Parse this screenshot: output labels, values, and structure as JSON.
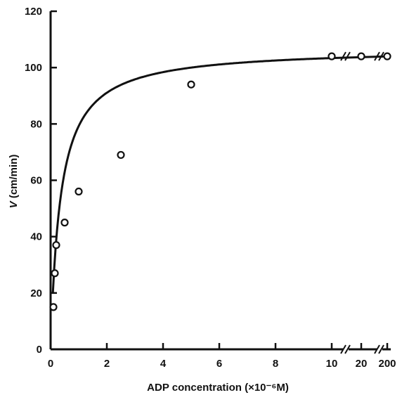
{
  "chart_data": {
    "type": "scatter",
    "xlabel": "ADP concentration (×10⁻⁶M)",
    "ylabel_var": "V",
    "ylabel_unit": " (cm/min)",
    "ylim": [
      0,
      120
    ],
    "y_ticks": [
      0,
      20,
      40,
      60,
      80,
      100,
      120
    ],
    "xlim_linear": [
      0,
      10
    ],
    "x_ticks_linear": [
      0,
      2,
      4,
      6,
      8,
      10
    ],
    "x_ticks_broken": [
      20,
      200
    ],
    "axis_breaks": [
      {
        "between": [
          10,
          20
        ]
      },
      {
        "between": [
          20,
          200
        ]
      }
    ],
    "series": [
      {
        "type": "scatter",
        "points": [
          {
            "x": 0.1,
            "y": 15
          },
          {
            "x": 0.15,
            "y": 27
          },
          {
            "x": 0.2,
            "y": 37
          },
          {
            "x": 0.5,
            "y": 45
          },
          {
            "x": 1,
            "y": 56
          },
          {
            "x": 2.5,
            "y": 69
          },
          {
            "x": 5,
            "y": 94
          },
          {
            "x": 10,
            "y": 104
          },
          {
            "x": 20,
            "y": 104
          },
          {
            "x": 200,
            "y": 104
          }
        ]
      },
      {
        "type": "line",
        "model": "michaelis-menten",
        "vmax": 107,
        "km": 0.35
      }
    ],
    "grid": false,
    "legend": "none"
  }
}
